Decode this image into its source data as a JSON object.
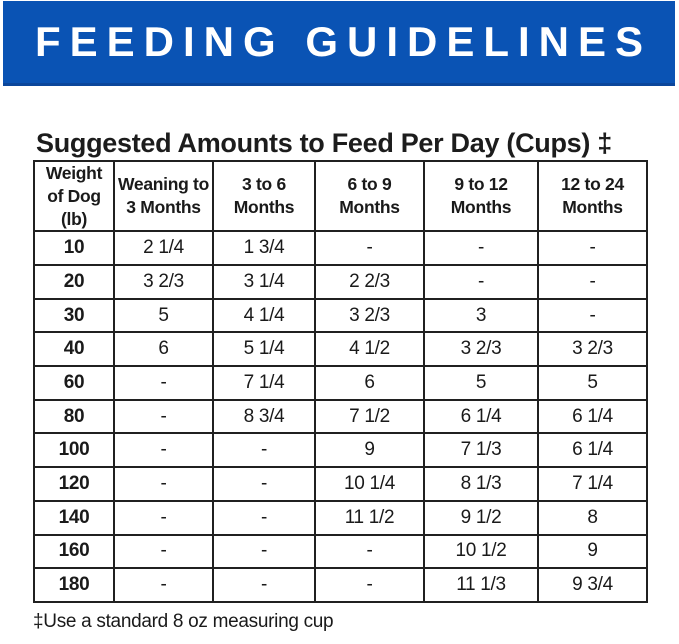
{
  "banner": {
    "title": "FEEDING GUIDELINES",
    "bg_color": "#0A53B4",
    "border_color": "#0B469B",
    "text_color": "#FFFFFF"
  },
  "subtitle": "Suggested Amounts to Feed Per Day (Cups) ‡",
  "chart_data": {
    "type": "table",
    "title": "Suggested Amounts to Feed Per Day (Cups)",
    "columns": [
      "Weight of Dog (lb)",
      "Weaning to 3 Months",
      "3 to 6 Months",
      "6 to 9 Months",
      "9 to 12 Months",
      "12 to 24 Months"
    ],
    "rows": [
      [
        "10",
        "2 1/4",
        "1 3/4",
        "-",
        "-",
        "-"
      ],
      [
        "20",
        "3 2/3",
        "3 1/4",
        "2 2/3",
        "-",
        "-"
      ],
      [
        "30",
        "5",
        "4 1/4",
        "3 2/3",
        "3",
        "-"
      ],
      [
        "40",
        "6",
        "5 1/4",
        "4 1/2",
        "3 2/3",
        "3 2/3"
      ],
      [
        "60",
        "-",
        "7 1/4",
        "6",
        "5",
        "5"
      ],
      [
        "80",
        "-",
        "8 3/4",
        "7 1/2",
        "6 1/4",
        "6 1/4"
      ],
      [
        "100",
        "-",
        "-",
        "9",
        "7 1/3",
        "6 1/4"
      ],
      [
        "120",
        "-",
        "-",
        "10 1/4",
        "8 1/3",
        "7 1/4"
      ],
      [
        "140",
        "-",
        "-",
        "11 1/2",
        "9 1/2",
        "8"
      ],
      [
        "160",
        "-",
        "-",
        "-",
        "10 1/2",
        "9"
      ],
      [
        "180",
        "-",
        "-",
        "-",
        "11 1/3",
        "9 3/4"
      ]
    ]
  },
  "footnote": "‡Use a standard 8 oz measuring cup"
}
